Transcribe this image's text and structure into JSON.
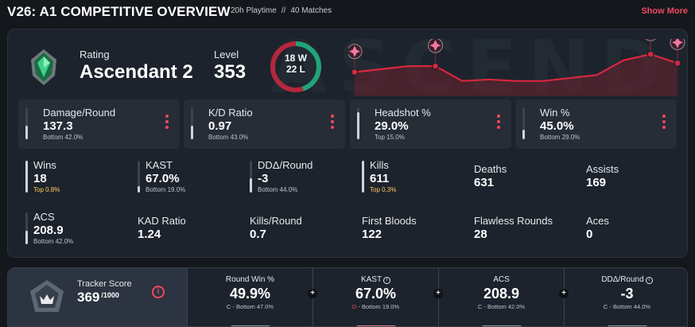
{
  "header": {
    "title": "V26: A1 COMPETITIVE OVERVIEW",
    "playtime": "20h Playtime",
    "separator": "//",
    "matches": "40 Matches",
    "show_more": "Show More"
  },
  "watermark": "ASCEND",
  "rank": {
    "label": "Rating",
    "value": "Ascendant 2"
  },
  "level": {
    "label": "Level",
    "value": "353"
  },
  "win_loss": {
    "wins": "18 W",
    "losses": "22 L",
    "win_fraction": 0.45
  },
  "colors": {
    "accent": "#f0485d",
    "win": "#1fa47a",
    "loss": "#b3283c",
    "gold": "#ffd060"
  },
  "rating_chart": {
    "type": "line",
    "values": [
      62,
      64,
      66,
      66,
      56,
      57,
      56,
      56,
      58,
      60,
      70,
      74,
      68
    ],
    "rank_icon_points": [
      0,
      3,
      11,
      12
    ]
  },
  "highlights": [
    {
      "title": "Damage/Round",
      "value": "137.3",
      "sub": "Bottom 42.0%",
      "fill": 0.42
    },
    {
      "title": "K/D Ratio",
      "value": "0.97",
      "sub": "Bottom 43.0%",
      "fill": 0.43
    },
    {
      "title": "Headshot %",
      "value": "29.0%",
      "sub": "Top 15.0%",
      "fill": 0.85
    },
    {
      "title": "Win %",
      "value": "45.0%",
      "sub": "Bottom 29.0%",
      "fill": 0.29
    }
  ],
  "stats_row1": [
    {
      "title": "Wins",
      "value": "18",
      "sub": "Top 0.8%",
      "fill": 0.99
    },
    {
      "title": "KAST",
      "value": "67.0%",
      "sub": "Bottom 19.0%",
      "fill": 0.19
    },
    {
      "title": "DDΔ/Round",
      "value": "-3",
      "sub": "Bottom 44.0%",
      "fill": 0.44
    },
    {
      "title": "Kills",
      "value": "611",
      "sub": "Top 0.3%",
      "fill": 0.99
    },
    {
      "title": "Deaths",
      "value": "631",
      "sub": ""
    },
    {
      "title": "Assists",
      "value": "169",
      "sub": ""
    }
  ],
  "stats_row2": [
    {
      "title": "ACS",
      "value": "208.9",
      "sub": "Bottom 42.0%",
      "fill": 0.42
    },
    {
      "title": "KAD Ratio",
      "value": "1.24"
    },
    {
      "title": "Kills/Round",
      "value": "0.7"
    },
    {
      "title": "First Bloods",
      "value": "122"
    },
    {
      "title": "Flawless Rounds",
      "value": "28"
    },
    {
      "title": "Aces",
      "value": "0"
    }
  ],
  "tracker": {
    "label": "Tracker Score",
    "value": "369",
    "max": "/1000",
    "info": "i",
    "columns": [
      {
        "title": "Round Win %",
        "value": "49.9%",
        "grade": "C",
        "sub": " - Bottom 47.0%"
      },
      {
        "title": "KAST",
        "value": "67.0%",
        "grade": "D",
        "sub": " - Bottom 19.0%"
      },
      {
        "title": "ACS",
        "value": "208.9",
        "grade": "C",
        "sub": " - Bottom 42.0%"
      },
      {
        "title": "DDΔ/Round",
        "value": "-3",
        "grade": "C",
        "sub": " - Bottom 44.0%"
      }
    ],
    "plus": "+"
  }
}
